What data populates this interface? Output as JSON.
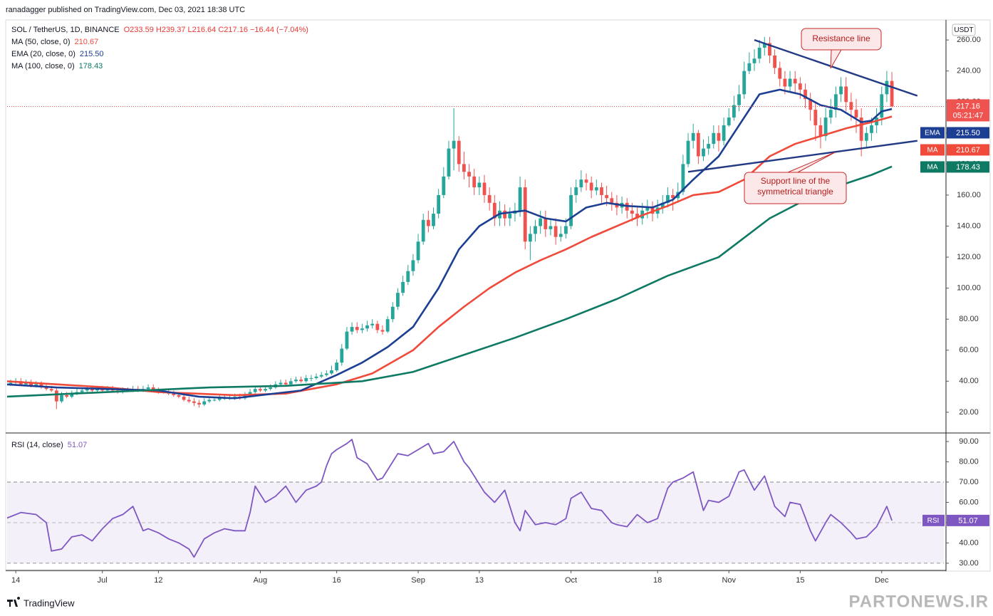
{
  "header": {
    "author": "ranadagger published on TradingView.com, Dec 03, 2021 18:38 UTC",
    "brand": "TradingView",
    "watermark": "PARTONEWS.IR"
  },
  "chart_data": [
    {
      "type": "candlestick",
      "title": "SOL / TetherUS, 1D, BINANCE",
      "subtitle": "O233.59 H239.37 L216.64 C217.16 −16.44 (−7.04%)",
      "currency": "USDT",
      "countdown": "05:21:47",
      "colors": {
        "up": "#26a69a",
        "down": "#ef5350"
      },
      "open": [
        37,
        38,
        39,
        40,
        38,
        39,
        37,
        38,
        36,
        35,
        34,
        27,
        31,
        30,
        32,
        33,
        34,
        35,
        34,
        35,
        34,
        35,
        34,
        33,
        34,
        34,
        35,
        34,
        35,
        36,
        34,
        33,
        33,
        32,
        31,
        30,
        28,
        27,
        26,
        25,
        27,
        28,
        28,
        29,
        29,
        29,
        30,
        29,
        31,
        33,
        35,
        34,
        35,
        36,
        38,
        39,
        38,
        40,
        41,
        40,
        42,
        42,
        43,
        44,
        45,
        47,
        52,
        61,
        72,
        75,
        73,
        74,
        76,
        77,
        73,
        72,
        80,
        88,
        97,
        104,
        111,
        118,
        130,
        144,
        140,
        148,
        160,
        172,
        190,
        195,
        180,
        175,
        172,
        165,
        168,
        160,
        155,
        145,
        150,
        145,
        148,
        150,
        165,
        130,
        135,
        140,
        145,
        138,
        140,
        133,
        135,
        140,
        160,
        165,
        170,
        168,
        163,
        165,
        160,
        158,
        155,
        152,
        155,
        150,
        148,
        145,
        150,
        152,
        148,
        152,
        155,
        160,
        158,
        162,
        180,
        195,
        200,
        185,
        190,
        193,
        200,
        195,
        205,
        210,
        218,
        225,
        240,
        245,
        248,
        255,
        258,
        250,
        242,
        235,
        230,
        235,
        232,
        228,
        222,
        215,
        205,
        198,
        210,
        215,
        225,
        230,
        220,
        215,
        210,
        195,
        200,
        205,
        210,
        225,
        233.59
      ],
      "high": [
        40,
        41,
        42,
        42,
        41,
        41,
        40,
        40,
        38,
        37,
        36,
        33,
        33,
        34,
        35,
        36,
        37,
        37,
        37,
        37,
        37,
        37,
        36,
        36,
        36,
        37,
        37,
        37,
        38,
        38,
        36,
        35,
        35,
        34,
        33,
        32,
        30,
        29,
        28,
        29,
        30,
        30,
        31,
        31,
        31,
        32,
        32,
        33,
        35,
        37,
        37,
        37,
        38,
        40,
        41,
        41,
        42,
        43,
        43,
        44,
        44,
        45,
        46,
        47,
        50,
        54,
        64,
        75,
        78,
        78,
        77,
        79,
        80,
        79,
        76,
        82,
        91,
        100,
        108,
        115,
        122,
        135,
        148,
        150,
        152,
        164,
        178,
        195,
        216,
        198,
        188,
        180,
        177,
        172,
        173,
        165,
        160,
        156,
        154,
        152,
        155,
        172,
        170,
        140,
        144,
        150,
        150,
        145,
        145,
        140,
        145,
        165,
        170,
        176,
        174,
        172,
        170,
        168,
        166,
        162,
        160,
        159,
        158,
        155,
        152,
        155,
        157,
        156,
        157,
        160,
        165,
        164,
        168,
        186,
        200,
        206,
        202,
        196,
        198,
        205,
        205,
        210,
        216,
        224,
        231,
        246,
        252,
        254,
        260,
        262,
        262,
        254,
        246,
        240,
        240,
        240,
        236,
        232,
        226,
        220,
        210,
        216,
        222,
        230,
        236,
        236,
        226,
        222,
        216,
        204,
        210,
        216,
        230,
        240,
        239.37
      ],
      "low": [
        36,
        37,
        38,
        37,
        37,
        36,
        36,
        35,
        34,
        33,
        22,
        26,
        29,
        29,
        31,
        32,
        33,
        33,
        33,
        33,
        33,
        33,
        32,
        32,
        33,
        33,
        33,
        33,
        34,
        33,
        32,
        32,
        31,
        30,
        29,
        27,
        26,
        24,
        23,
        24,
        26,
        27,
        27,
        28,
        28,
        28,
        28,
        28,
        30,
        32,
        33,
        33,
        34,
        35,
        37,
        37,
        37,
        39,
        39,
        39,
        40,
        41,
        42,
        43,
        44,
        46,
        50,
        60,
        70,
        71,
        71,
        72,
        74,
        71,
        70,
        71,
        78,
        86,
        95,
        102,
        108,
        116,
        128,
        136,
        138,
        145,
        158,
        170,
        176,
        175,
        170,
        165,
        160,
        160,
        155,
        150,
        140,
        140,
        140,
        140,
        143,
        146,
        125,
        118,
        130,
        135,
        133,
        134,
        128,
        130,
        132,
        138,
        155,
        162,
        163,
        158,
        160,
        155,
        153,
        150,
        147,
        148,
        145,
        143,
        140,
        141,
        145,
        143,
        145,
        148,
        152,
        150,
        155,
        160,
        178,
        190,
        180,
        182,
        186,
        190,
        188,
        192,
        204,
        208,
        214,
        222,
        238,
        240,
        245,
        250,
        245,
        238,
        230,
        225,
        226,
        226,
        222,
        216,
        208,
        195,
        190,
        195,
        206,
        210,
        220,
        214,
        208,
        200,
        185,
        190,
        195,
        200,
        205,
        220,
        216.64
      ],
      "close": [
        38,
        39,
        40,
        38,
        39,
        37,
        38,
        36,
        35,
        34,
        27,
        31,
        30,
        32,
        33,
        34,
        35,
        34,
        35,
        34,
        35,
        34,
        33,
        34,
        34,
        35,
        34,
        35,
        36,
        34,
        33,
        33,
        32,
        31,
        30,
        28,
        27,
        26,
        25,
        27,
        28,
        28,
        29,
        29,
        29,
        30,
        29,
        31,
        33,
        35,
        34,
        35,
        36,
        38,
        39,
        38,
        40,
        41,
        40,
        42,
        42,
        43,
        44,
        45,
        47,
        52,
        61,
        72,
        75,
        73,
        74,
        76,
        77,
        73,
        72,
        80,
        88,
        97,
        104,
        111,
        118,
        130,
        144,
        140,
        148,
        160,
        172,
        190,
        195,
        180,
        175,
        172,
        165,
        168,
        160,
        155,
        145,
        150,
        145,
        148,
        150,
        165,
        130,
        135,
        140,
        145,
        138,
        140,
        133,
        135,
        140,
        160,
        165,
        170,
        168,
        163,
        165,
        160,
        158,
        155,
        152,
        155,
        150,
        148,
        145,
        150,
        152,
        148,
        152,
        155,
        160,
        158,
        162,
        180,
        195,
        200,
        185,
        190,
        193,
        200,
        195,
        205,
        210,
        218,
        225,
        240,
        245,
        248,
        255,
        258,
        250,
        242,
        235,
        230,
        235,
        232,
        228,
        222,
        215,
        205,
        198,
        210,
        215,
        225,
        230,
        220,
        215,
        210,
        195,
        200,
        205,
        210,
        225,
        233.59,
        217.16
      ],
      "series": [
        {
          "name": "MA (50, close, 0)",
          "tag": "MA",
          "last_label": "210.67",
          "color": "#f04a3a",
          "x": [
            0,
            10,
            20,
            30,
            45,
            55,
            65,
            72,
            80,
            85,
            90,
            95,
            100,
            105,
            110,
            115,
            120,
            125,
            130,
            135,
            140,
            145,
            150,
            155,
            160,
            165,
            170,
            174
          ],
          "values": [
            40,
            38,
            36,
            33,
            31,
            32,
            38,
            45,
            60,
            75,
            88,
            100,
            110,
            118,
            125,
            133,
            140,
            147,
            153,
            160,
            162,
            170,
            185,
            193,
            198,
            203,
            207,
            210.67
          ]
        },
        {
          "name": "EMA (20, close, 0)",
          "tag": "EMA",
          "last_label": "215.50",
          "color": "#1c3f94",
          "x": [
            0,
            10,
            20,
            30,
            38,
            45,
            50,
            58,
            65,
            70,
            75,
            80,
            85,
            89,
            93,
            97,
            102,
            106,
            110,
            114,
            118,
            122,
            127,
            131,
            135,
            140,
            144,
            148,
            152,
            156,
            160,
            164,
            168,
            170,
            172,
            174
          ],
          "values": [
            38,
            36,
            35,
            34,
            30,
            29,
            31,
            34,
            44,
            52,
            62,
            75,
            100,
            125,
            140,
            148,
            150,
            145,
            143,
            152,
            155,
            153,
            152,
            157,
            170,
            185,
            205,
            225,
            228,
            225,
            218,
            215,
            207,
            208,
            214,
            215.5
          ]
        },
        {
          "name": "MA (100, close, 0)",
          "tag": "MA",
          "last_label": "178.43",
          "color": "#0e7a63",
          "x": [
            0,
            20,
            40,
            55,
            70,
            80,
            90,
            100,
            110,
            120,
            130,
            140,
            150,
            160,
            170,
            174
          ],
          "values": [
            30,
            33,
            36,
            37,
            40,
            46,
            57,
            68,
            80,
            93,
            108,
            120,
            145,
            162,
            173,
            178.43
          ]
        }
      ],
      "trendlines": [
        {
          "color": "#233a85",
          "x": [
            147,
            179
          ],
          "values": [
            260,
            224
          ]
        },
        {
          "color": "#233a85",
          "x": [
            134,
            179
          ],
          "values": [
            175,
            195
          ]
        }
      ],
      "annotations": [
        {
          "lines": [
            "Resistance line"
          ]
        },
        {
          "lines": [
            "Support line of the",
            "symmetrical triangle"
          ]
        }
      ],
      "xlim": [
        0.3,
        184.2
      ],
      "xticks": [
        {
          "value": 2,
          "label": "14"
        },
        {
          "value": 19,
          "label": "Jul"
        },
        {
          "value": 30,
          "label": "12"
        },
        {
          "value": 50,
          "label": "Aug"
        },
        {
          "value": 65,
          "label": "16"
        },
        {
          "value": 81,
          "label": "Sep"
        },
        {
          "value": 93,
          "label": "13"
        },
        {
          "value": 111,
          "label": "Oct"
        },
        {
          "value": 128,
          "label": "18"
        },
        {
          "value": 142,
          "label": "Nov"
        },
        {
          "value": 156,
          "label": "15"
        },
        {
          "value": 172,
          "label": "Dec"
        }
      ],
      "ylim": [
        8,
        272
      ],
      "yticks": [
        {
          "value": 20,
          "label": "20.00"
        },
        {
          "value": 40,
          "label": "40.00"
        },
        {
          "value": 60,
          "label": "60.00"
        },
        {
          "value": 80,
          "label": "80.00"
        },
        {
          "value": 100,
          "label": "100.00"
        },
        {
          "value": 120,
          "label": "120.00"
        },
        {
          "value": 140,
          "label": "140.00"
        },
        {
          "value": 160,
          "label": "160.00"
        },
        {
          "value": 180,
          "label": "180.00"
        },
        {
          "value": 200,
          "label": "200.00"
        },
        {
          "value": 220,
          "label": "220.00"
        },
        {
          "value": 240,
          "label": "240.00"
        },
        {
          "value": 260,
          "label": "260.00"
        }
      ]
    },
    {
      "type": "line",
      "title": "RSI (14, close)",
      "tag": "RSI",
      "color": "#7e57c2",
      "x": [
        0,
        3,
        6,
        8,
        9,
        11,
        13,
        15,
        17,
        19,
        21,
        23,
        25,
        27,
        28,
        30,
        32,
        34,
        36,
        37,
        39,
        41,
        43,
        45,
        47,
        48,
        49,
        51,
        53,
        55,
        57,
        59,
        61,
        62,
        63,
        64,
        65,
        67,
        68,
        69,
        71,
        73,
        74,
        76,
        77,
        79,
        81,
        83,
        84,
        86,
        88,
        90,
        91,
        92,
        94,
        96,
        98,
        100,
        101,
        102,
        104,
        106,
        108,
        110,
        111,
        113,
        115,
        117,
        119,
        120,
        122,
        124,
        126,
        128,
        130,
        131,
        133,
        135,
        137,
        138,
        140,
        142,
        144,
        145,
        147,
        149,
        151,
        153,
        154,
        156,
        158,
        159,
        161,
        162,
        164,
        166,
        167,
        169,
        171,
        173,
        174
      ],
      "values": [
        52,
        55,
        54,
        50,
        36,
        37,
        43,
        44,
        41,
        47,
        52,
        54,
        58,
        46,
        47,
        45,
        42,
        40,
        37,
        33,
        42,
        45,
        47,
        46,
        46,
        55,
        68,
        60,
        63,
        68,
        60,
        66,
        68,
        70,
        78,
        84,
        86,
        89,
        91,
        82,
        79,
        71,
        72,
        80,
        84,
        83,
        86,
        89,
        84,
        85,
        90,
        80,
        77,
        73,
        65,
        60,
        66,
        50,
        46,
        56,
        49,
        50,
        49,
        52,
        62,
        65,
        57,
        56,
        50,
        49,
        48,
        54,
        50,
        52,
        67,
        70,
        72,
        75,
        56,
        61,
        60,
        63,
        75,
        76,
        66,
        73,
        58,
        53,
        60,
        59,
        46,
        41,
        50,
        54,
        50,
        45,
        42,
        43,
        48,
        58,
        51.07
      ],
      "band": [
        30,
        70
      ],
      "midline": 50,
      "xlim": [
        0.3,
        184.2
      ],
      "ylim": [
        26.8,
        93.5
      ],
      "yticks": [
        {
          "value": 30,
          "label": "30.00"
        },
        {
          "value": 40,
          "label": "40.00"
        },
        {
          "value": 50,
          "label": "50.00"
        },
        {
          "value": 60,
          "label": "60.00"
        },
        {
          "value": 70,
          "label": "70.00"
        },
        {
          "value": 80,
          "label": "80.00"
        },
        {
          "value": 90,
          "label": "90.00"
        }
      ]
    }
  ]
}
